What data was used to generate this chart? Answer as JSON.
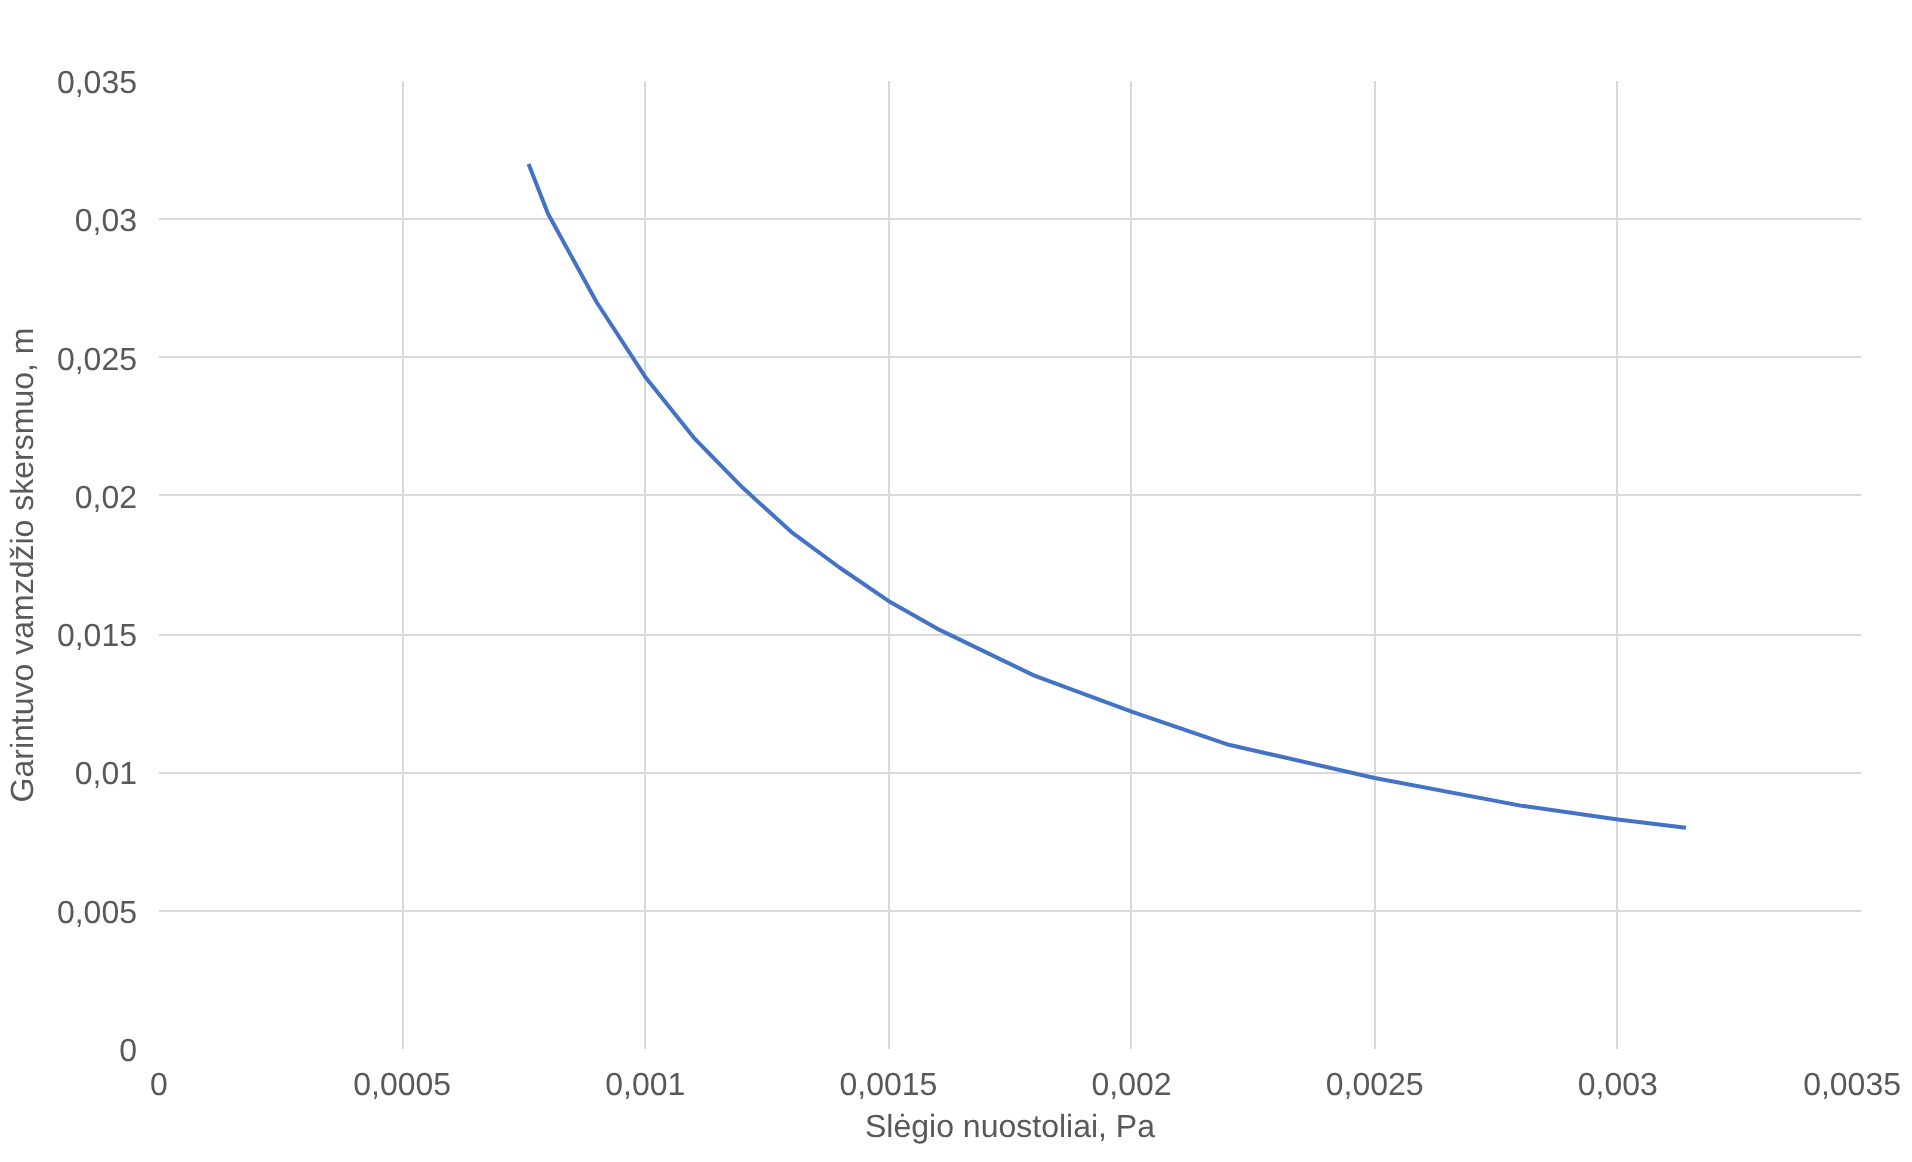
{
  "chart_data": {
    "type": "line",
    "xlabel": "Slėgio nuostoliai, Pa",
    "ylabel": "Garintuvo vamzdžio skersmuo, m",
    "x": [
      0.00076,
      0.0008,
      0.0009,
      0.001,
      0.0011,
      0.0012,
      0.0013,
      0.0014,
      0.0015,
      0.0016,
      0.0018,
      0.002,
      0.0022,
      0.0025,
      0.0028,
      0.003,
      0.00314
    ],
    "series": [
      {
        "color": "#4472c4",
        "values": [
          0.032,
          0.0302,
          0.027,
          0.0243,
          0.0221,
          0.0203,
          0.0187,
          0.0174,
          0.0162,
          0.0152,
          0.0135,
          0.0122,
          0.011,
          0.0098,
          0.0088,
          0.0083,
          0.008
        ]
      }
    ],
    "xlim": [
      0,
      0.0035
    ],
    "ylim": [
      0,
      0.035
    ],
    "xticks": [
      0,
      {
        "value": 0.0005,
        "label": "0,0005"
      },
      {
        "value": 0.001,
        "label": "0,001"
      },
      {
        "value": 0.0015,
        "label": "0,0015"
      },
      {
        "value": 0.002,
        "label": "0,002"
      },
      {
        "value": 0.0025,
        "label": "0,0025"
      },
      {
        "value": 0.003,
        "label": "0,003"
      },
      {
        "value": 0.0035,
        "label": "0,0035"
      }
    ],
    "yticks": [
      0,
      {
        "value": 0.005,
        "label": "0,005"
      },
      {
        "value": 0.01,
        "label": "0,01"
      },
      {
        "value": 0.015,
        "label": "0,015"
      },
      {
        "value": 0.02,
        "label": "0,02"
      },
      {
        "value": 0.025,
        "label": "0,025"
      },
      {
        "value": 0.03,
        "label": "0,03"
      },
      {
        "value": 0.035,
        "label": "0,035"
      }
    ],
    "grid": true,
    "line_style": "solid"
  }
}
